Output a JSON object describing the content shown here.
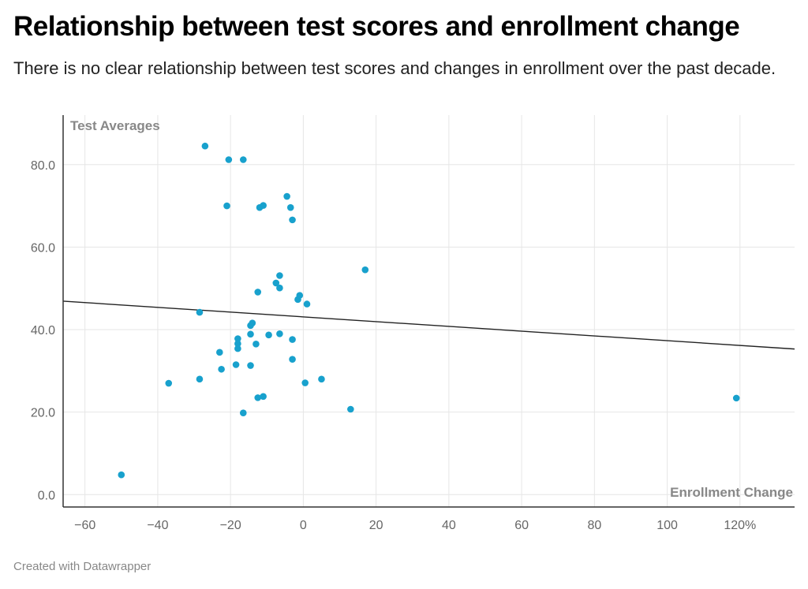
{
  "header": {
    "title": "Relationship between test scores and enrollment change",
    "subtitle": "There is no clear relationship between test scores and changes in enrollment over the past decade."
  },
  "footer": {
    "credit": "Created with Datawrapper"
  },
  "colors": {
    "point": "#18a1cd",
    "grid": "#e6e6e6",
    "axis": "#333333",
    "trend": "#222222"
  },
  "chart_data": {
    "type": "scatter",
    "xlabel": "Enrollment Change",
    "ylabel": "Test Averages",
    "xlim": [
      -66,
      135
    ],
    "ylim": [
      -3,
      92
    ],
    "x_ticks": [
      -60,
      -40,
      -20,
      0,
      20,
      40,
      60,
      80,
      100,
      120
    ],
    "x_tick_labels": [
      "−60",
      "−40",
      "−20",
      "0",
      "20",
      "40",
      "60",
      "80",
      "100",
      "120%"
    ],
    "y_ticks": [
      0,
      20,
      40,
      60,
      80
    ],
    "y_tick_labels": [
      "0.0",
      "20.0",
      "40.0",
      "60.0",
      "80.0"
    ],
    "grid": true,
    "trendline": {
      "x": [
        -66,
        135
      ],
      "y": [
        46.9,
        35.3
      ]
    },
    "points": [
      {
        "x": -27,
        "y": 84.5
      },
      {
        "x": -20.5,
        "y": 81.2
      },
      {
        "x": -16.5,
        "y": 81.2
      },
      {
        "x": -4.5,
        "y": 72.3
      },
      {
        "x": -21,
        "y": 70
      },
      {
        "x": -12,
        "y": 69.6
      },
      {
        "x": -11,
        "y": 70.1
      },
      {
        "x": -3.5,
        "y": 69.6
      },
      {
        "x": -3,
        "y": 66.6
      },
      {
        "x": 17,
        "y": 54.5
      },
      {
        "x": -6.5,
        "y": 53.1
      },
      {
        "x": -7.5,
        "y": 51.3
      },
      {
        "x": -6.5,
        "y": 50.1
      },
      {
        "x": -12.5,
        "y": 49.1
      },
      {
        "x": -1,
        "y": 48.3
      },
      {
        "x": -1.5,
        "y": 47.3
      },
      {
        "x": 1,
        "y": 46.2
      },
      {
        "x": -28.5,
        "y": 44.2
      },
      {
        "x": -14,
        "y": 41.6
      },
      {
        "x": -14.5,
        "y": 41
      },
      {
        "x": -14.5,
        "y": 38.9
      },
      {
        "x": -9.5,
        "y": 38.7
      },
      {
        "x": -6.5,
        "y": 39
      },
      {
        "x": -18,
        "y": 37.8
      },
      {
        "x": -3,
        "y": 37.6
      },
      {
        "x": -18,
        "y": 36.6
      },
      {
        "x": -13,
        "y": 36.5
      },
      {
        "x": -18,
        "y": 35.4
      },
      {
        "x": -23,
        "y": 34.5
      },
      {
        "x": -3,
        "y": 32.8
      },
      {
        "x": -18.5,
        "y": 31.5
      },
      {
        "x": -14.5,
        "y": 31.3
      },
      {
        "x": -22.5,
        "y": 30.4
      },
      {
        "x": -28.5,
        "y": 28
      },
      {
        "x": 5,
        "y": 28
      },
      {
        "x": -37,
        "y": 27
      },
      {
        "x": 0.5,
        "y": 27.1
      },
      {
        "x": -11,
        "y": 23.8
      },
      {
        "x": -12.5,
        "y": 23.5
      },
      {
        "x": 13,
        "y": 20.7
      },
      {
        "x": -16.5,
        "y": 19.8
      },
      {
        "x": 119,
        "y": 23.4
      },
      {
        "x": -50,
        "y": 4.8
      }
    ]
  }
}
